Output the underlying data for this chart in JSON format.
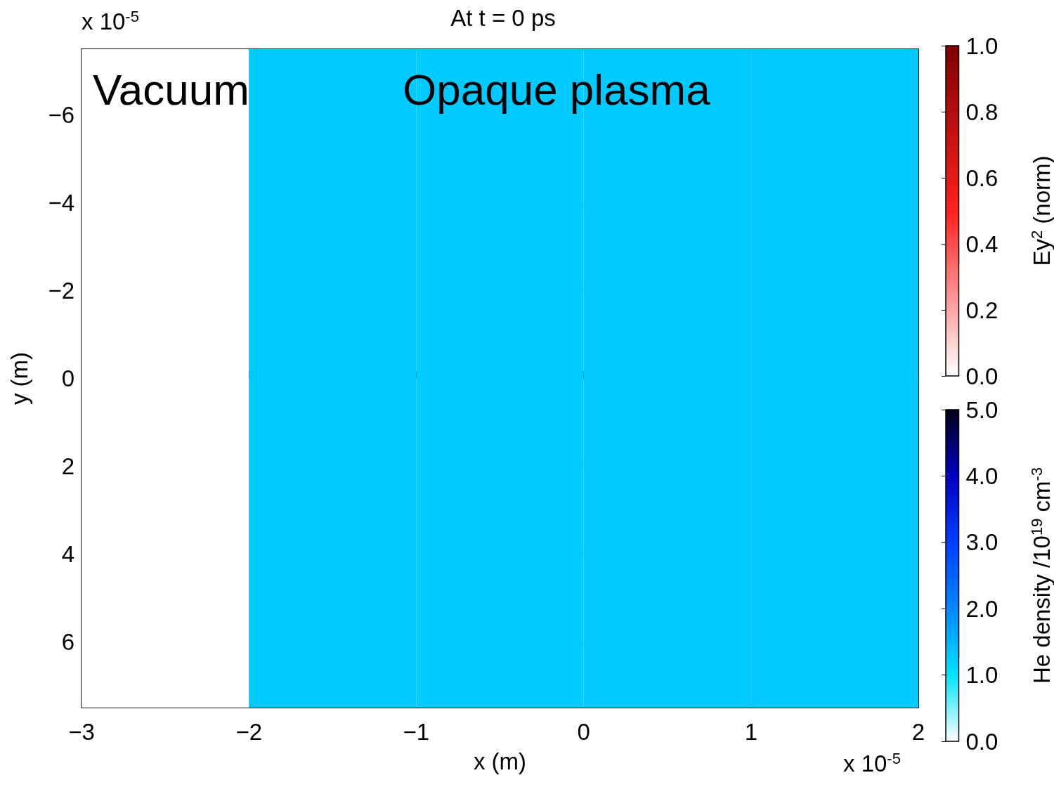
{
  "chart_data": [
    {
      "type": "heatmap",
      "title": "At t = 0 ps",
      "xlabel": "x (m)",
      "ylabel": "y (m)",
      "clabel": "He density /10$^{19}$ cm$^{-3}$",
      "cells": [
        [
          0,
          1.3,
          1.3,
          1.3,
          1.3
        ]
      ],
      "xlim": [
        -3,
        2
      ],
      "xticks": [
        -3,
        -2,
        -1,
        0,
        1,
        2
      ],
      "ylim": [
        7.5,
        -7.5
      ],
      "yticks": [
        -6,
        -4,
        -2,
        0,
        2,
        4,
        6
      ],
      "clim": [
        0,
        5
      ],
      "cticks": [
        {
          "value": 0,
          "label": "0.0"
        },
        {
          "value": 1,
          "label": "1.0"
        },
        {
          "value": 2,
          "label": "2.0"
        },
        {
          "value": 3,
          "label": "3.0"
        },
        {
          "value": 4,
          "label": "4.0"
        },
        {
          "value": 5,
          "label": "5.0"
        }
      ],
      "annotations": [
        "x 10$^{-5}$",
        "x 10$^{-5}$",
        "Vacuum",
        "Opaque plasma"
      ]
    },
    {
      "type": "heatmap",
      "clabel": "Ey$^{2}$ (norm)",
      "clim": [
        0,
        1
      ],
      "cells": [
        [
          0,
          null,
          null,
          null,
          null
        ]
      ],
      "xlim": [
        -3,
        2
      ],
      "ylim": [
        7.5,
        -7.5
      ],
      "cticks": [
        {
          "value": 0,
          "label": "0.0"
        },
        {
          "value": 0.2,
          "label": "0.2"
        },
        {
          "value": 0.4,
          "label": "0.4"
        },
        {
          "value": 0.6,
          "label": "0.6"
        },
        {
          "value": 0.8,
          "label": "0.8"
        },
        {
          "value": 1,
          "label": "1.0"
        }
      ]
    }
  ]
}
